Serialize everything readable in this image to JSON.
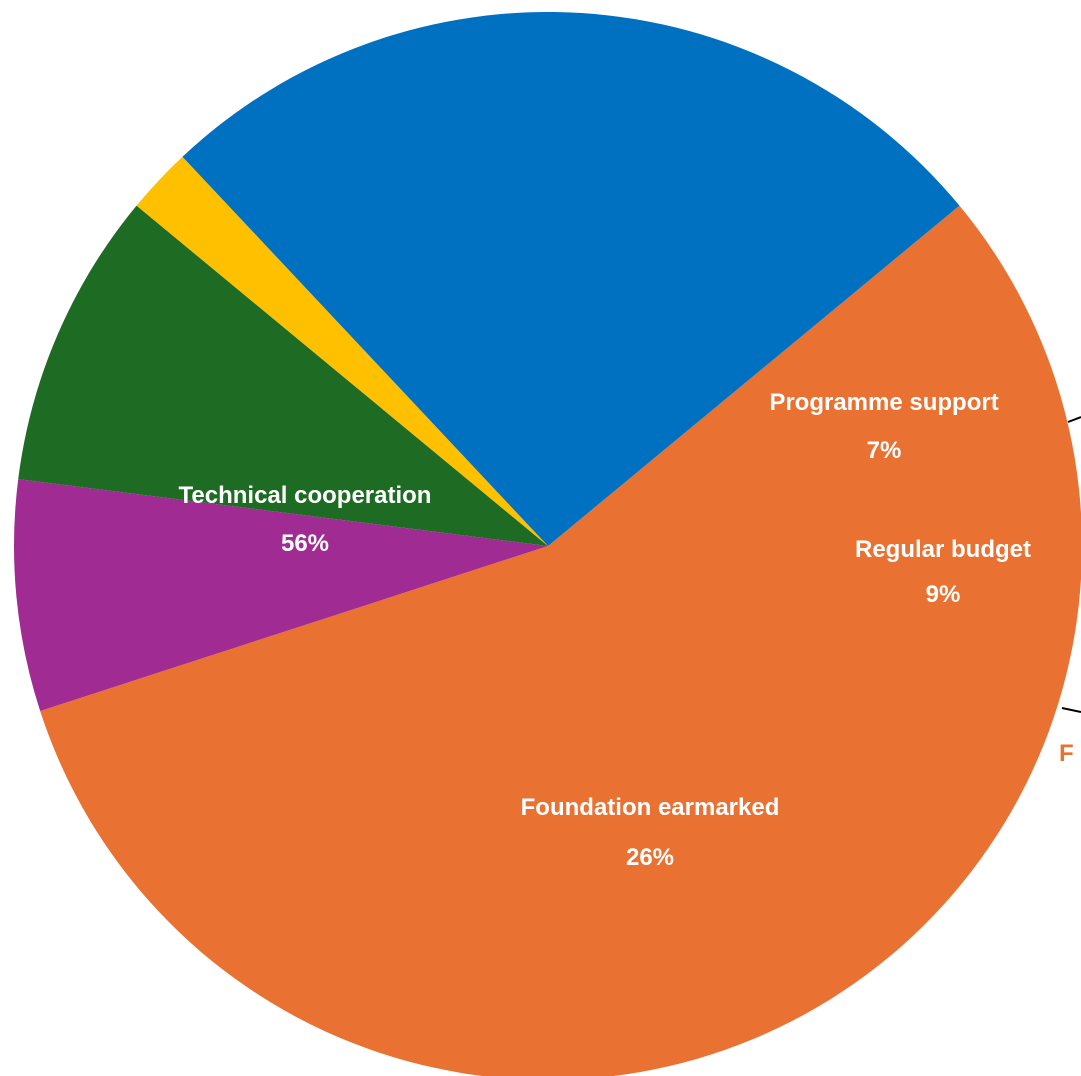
{
  "chart_data": {
    "type": "pie",
    "slices": [
      {
        "name": "Technical cooperation",
        "value": 56,
        "label": "56%",
        "color": "#E97132"
      },
      {
        "name": "Programme support",
        "value": 7,
        "label": "7%",
        "color": "#A02B93"
      },
      {
        "name": "Regular budget",
        "value": 9,
        "label": "9%",
        "color": "#1E6B24"
      },
      {
        "name": "",
        "value": 2,
        "label": "",
        "color": "#FFC000"
      },
      {
        "name": "Foundation earmarked",
        "value": 26,
        "label": "26%",
        "color": "#0070C0"
      }
    ],
    "cropped_label": "F",
    "cropped_label_color": "#E97132",
    "leader_line_color": "#000000"
  }
}
